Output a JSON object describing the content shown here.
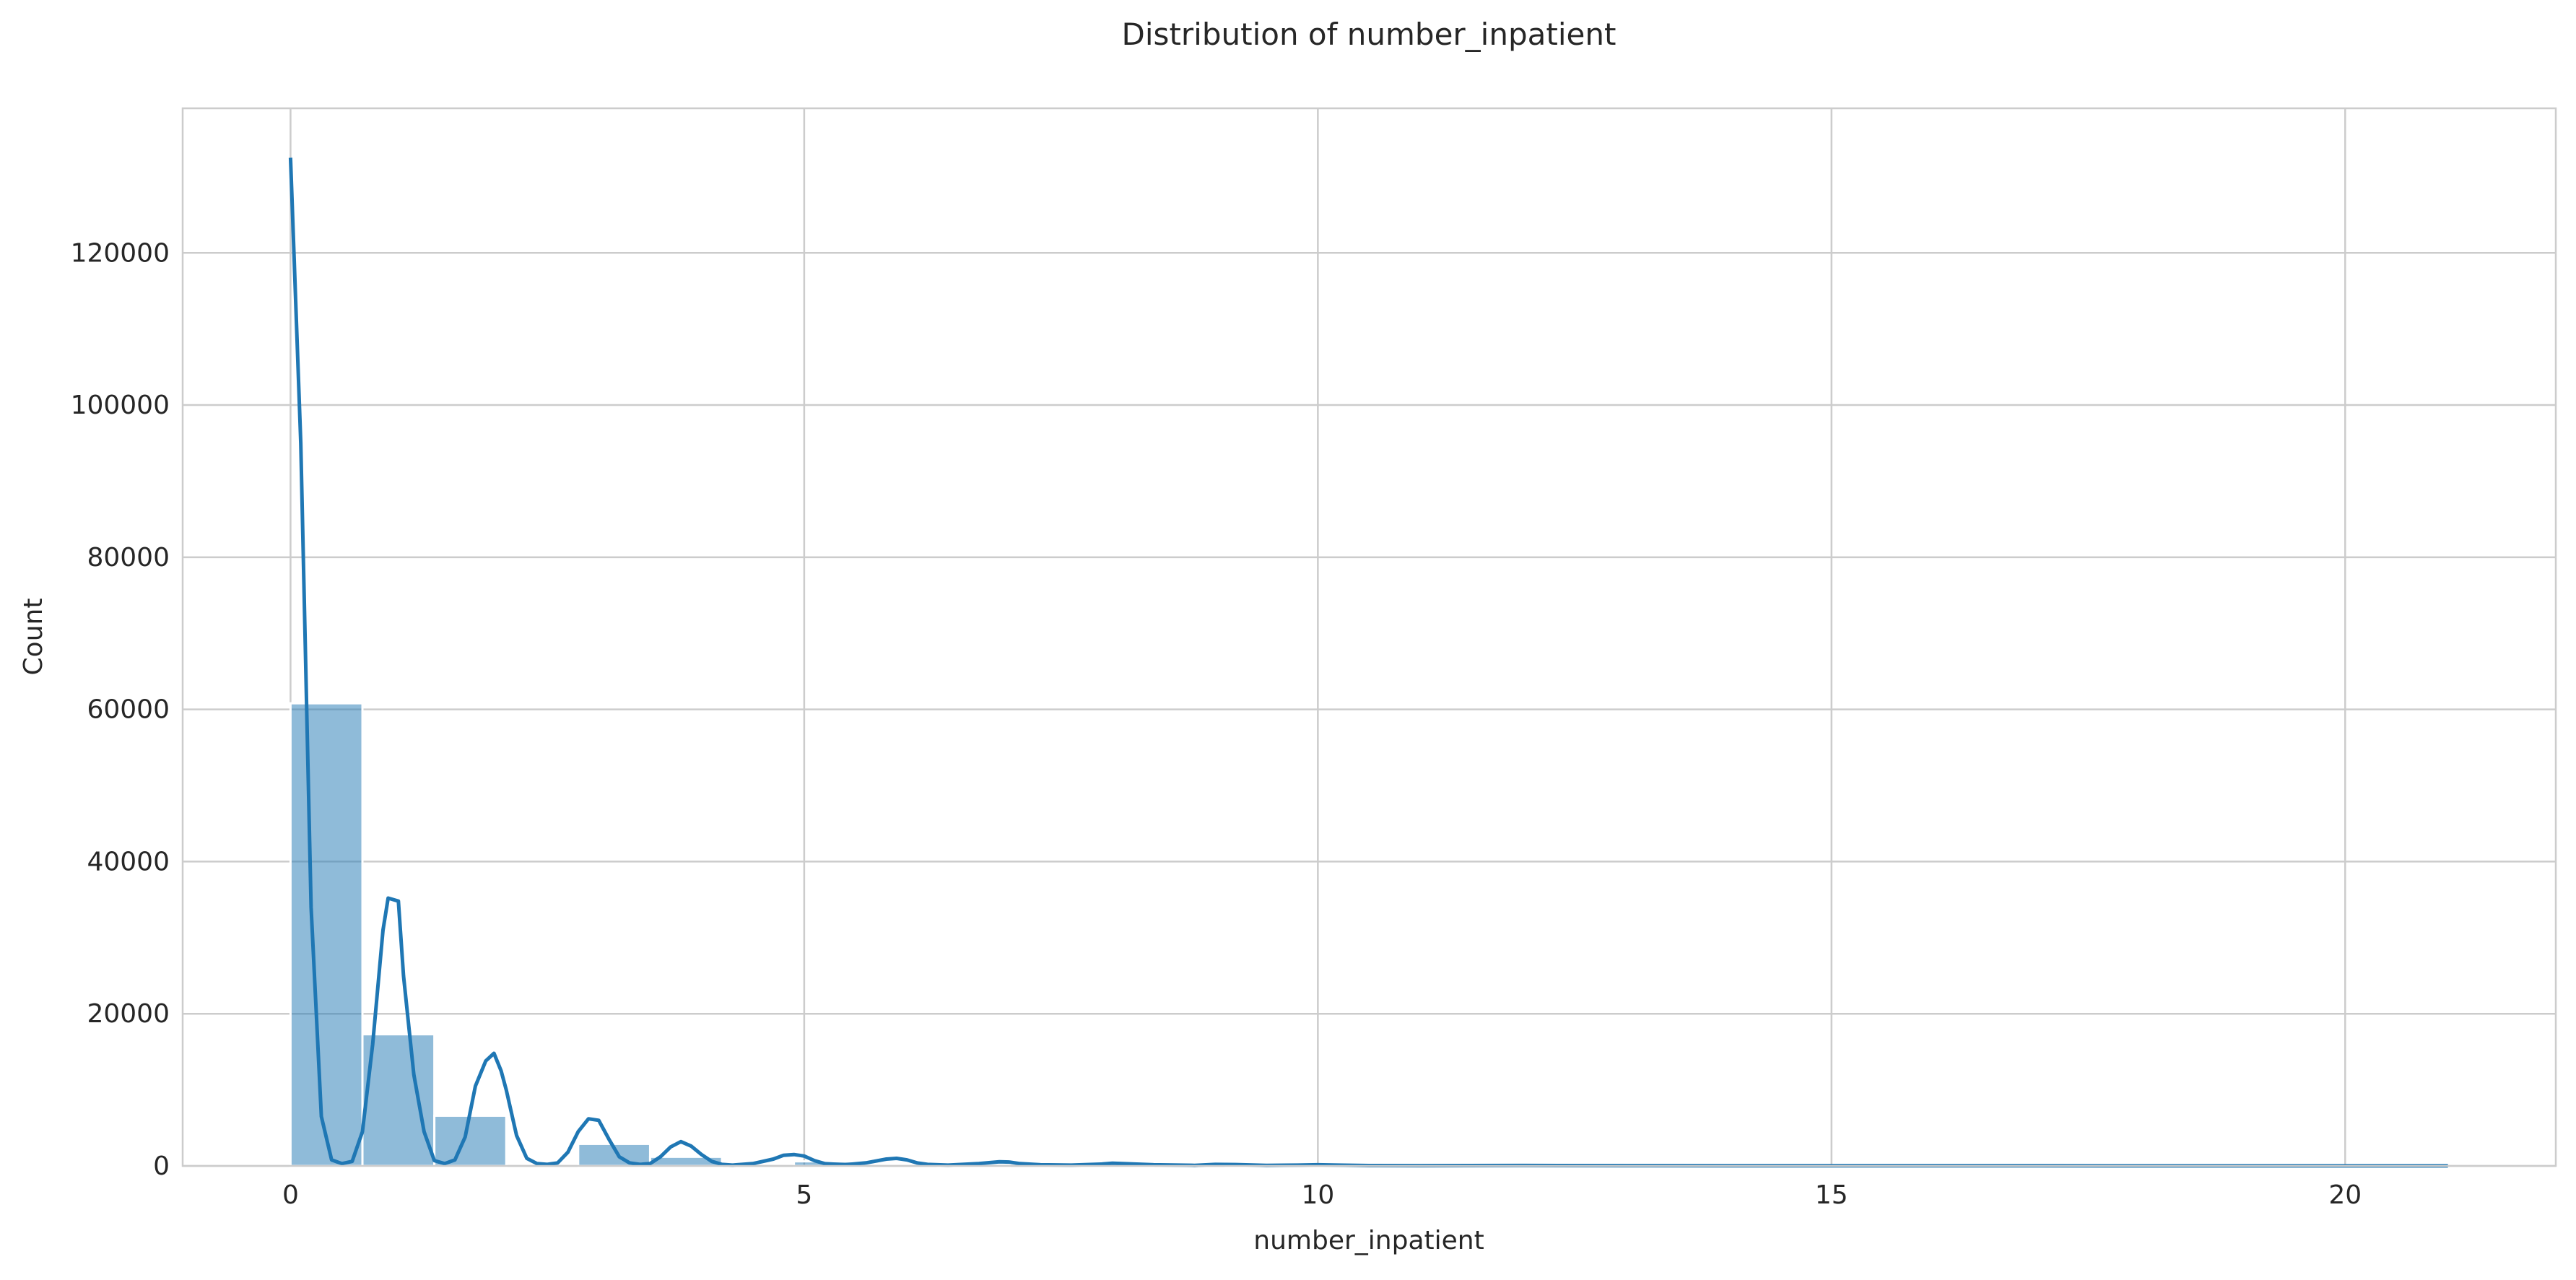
{
  "chart_data": {
    "type": "bar",
    "title": "Distribution of number_inpatient",
    "xlabel": "number_inpatient",
    "ylabel": "Count",
    "xlim": [
      -1.05,
      22.05
    ],
    "ylim": [
      0,
      139000
    ],
    "xticks": [
      0,
      5,
      10,
      15,
      20
    ],
    "yticks": [
      0,
      20000,
      40000,
      60000,
      80000,
      100000,
      120000
    ],
    "grid": true,
    "histogram": {
      "bin_start": 0,
      "bin_width": 0.7,
      "counts": [
        60800,
        17300,
        6600,
        0,
        2900,
        1200,
        0,
        600,
        0,
        300,
        0,
        150,
        0,
        80,
        0,
        40,
        0,
        20,
        0,
        10,
        0,
        0,
        0,
        0,
        0,
        0,
        0,
        0,
        0,
        0
      ]
    },
    "kde": {
      "x": [
        0,
        0.1,
        0.2,
        0.3,
        0.4,
        0.5,
        0.6,
        0.7,
        0.8,
        0.9,
        0.95,
        1.05,
        1.1,
        1.2,
        1.3,
        1.4,
        1.5,
        1.6,
        1.7,
        1.8,
        1.9,
        1.98,
        2.05,
        2.1,
        2.2,
        2.3,
        2.4,
        2.5,
        2.6,
        2.7,
        2.8,
        2.9,
        3.0,
        3.1,
        3.2,
        3.3,
        3.4,
        3.5,
        3.6,
        3.7,
        3.8,
        3.9,
        4.0,
        4.1,
        4.2,
        4.3,
        4.5,
        4.7,
        4.8,
        4.9,
        5.0,
        5.1,
        5.2,
        5.4,
        5.6,
        5.8,
        5.9,
        6.0,
        6.1,
        6.2,
        6.4,
        6.7,
        6.9,
        7.0,
        7.1,
        7.3,
        7.6,
        7.9,
        8.0,
        8.1,
        8.4,
        8.8,
        9.0,
        9.2,
        9.5,
        9.8,
        10.0,
        10.2,
        10.5,
        11.0,
        12.0,
        13.0,
        14.0,
        15.0,
        16.0,
        17.0,
        18.0,
        19.0,
        20.0,
        21.0
      ],
      "y": [
        132500,
        95000,
        34000,
        6500,
        800,
        300,
        600,
        4500,
        16000,
        31000,
        35200,
        34800,
        25000,
        12000,
        4500,
        700,
        300,
        800,
        3800,
        10500,
        13800,
        14800,
        12500,
        10000,
        4000,
        1000,
        300,
        200,
        400,
        1800,
        4500,
        6200,
        6000,
        3500,
        1200,
        400,
        200,
        300,
        1200,
        2500,
        3200,
        2600,
        1500,
        600,
        200,
        100,
        300,
        900,
        1400,
        1500,
        1300,
        700,
        300,
        150,
        400,
        900,
        1000,
        800,
        400,
        200,
        100,
        300,
        550,
        500,
        300,
        150,
        100,
        250,
        350,
        300,
        150,
        80,
        200,
        180,
        80,
        100,
        150,
        100,
        50,
        40,
        60,
        40,
        30,
        20,
        20,
        15,
        10,
        10,
        8,
        5
      ]
    }
  }
}
